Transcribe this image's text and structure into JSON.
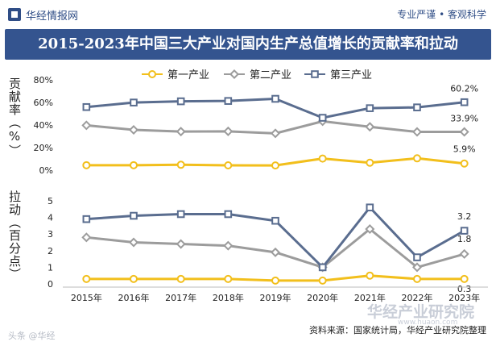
{
  "header": {
    "brand": "华经情报网",
    "tagline": "专业严谨 • 客观科学",
    "title": "2015-2023年中国三大产业对国内生产总值增长的贡献率和拉动"
  },
  "chart_data": {
    "type": "line",
    "categories": [
      "2015年",
      "2016年",
      "2017年",
      "2018年",
      "2019年",
      "2020年",
      "2021年",
      "2022年",
      "2023年"
    ],
    "legend": [
      "第一产业",
      "第二产业",
      "第三产业"
    ],
    "colors": {
      "primary": "#f2bf1c",
      "secondary": "#9c9c9c",
      "tertiary": "#5a6d8f"
    },
    "panels": [
      {
        "name": "contribution",
        "ylabel": "贡献率（%）",
        "ylim": [
          0,
          80
        ],
        "yticks": [
          0,
          20,
          40,
          60,
          80
        ],
        "ytick_labels": [
          "0%",
          "20%",
          "40%",
          "60%",
          "80%"
        ],
        "series": [
          {
            "name": "第一产业",
            "values": [
              4.4,
              4.4,
              4.8,
              4.3,
              4.2,
              10.3,
              6.6,
              10.5,
              5.9
            ]
          },
          {
            "name": "第二产业",
            "values": [
              39.7,
              35.7,
              34.2,
              34.4,
              32.6,
              43.3,
              38.4,
              33.9,
              33.9
            ]
          },
          {
            "name": "第三产业",
            "values": [
              55.9,
              59.9,
              61.0,
              61.3,
              63.2,
              46.4,
              54.9,
              55.6,
              60.2
            ]
          }
        ],
        "end_labels": [
          "60.2%",
          "33.9%",
          "5.9%"
        ]
      },
      {
        "name": "pull",
        "ylabel": "拉动（百分点）",
        "ylim": [
          0,
          5
        ],
        "yticks": [
          0,
          1,
          2,
          3,
          4,
          5
        ],
        "ytick_labels": [
          "0",
          "1",
          "2",
          "3",
          "4",
          "5"
        ],
        "series": [
          {
            "name": "第一产业",
            "values": [
              0.3,
              0.3,
              0.3,
              0.3,
              0.2,
              0.2,
              0.5,
              0.3,
              0.3
            ]
          },
          {
            "name": "第二产业",
            "values": [
              2.8,
              2.5,
              2.4,
              2.3,
              1.9,
              1.0,
              3.3,
              1.0,
              1.8
            ]
          },
          {
            "name": "第三产业",
            "values": [
              3.9,
              4.1,
              4.2,
              4.2,
              3.8,
              1.0,
              4.6,
              1.6,
              3.2
            ]
          }
        ],
        "end_labels": [
          "3.2",
          "1.8",
          "0.3"
        ]
      }
    ]
  },
  "footer": {
    "source": "资料来源：国家统计局，华经产业研究院整理",
    "watermark_brand": "华经产业研究院",
    "watermark_url": "www.huaon.com",
    "corner_mark": "头条 @华经"
  }
}
